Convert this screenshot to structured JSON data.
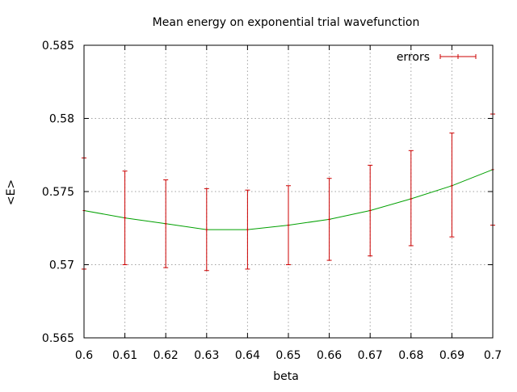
{
  "chart_data": {
    "type": "line",
    "title": "Mean energy on exponential trial wavefunction",
    "xlabel": "beta",
    "ylabel": "<E>",
    "xlim": [
      0.6,
      0.7
    ],
    "ylim": [
      0.565,
      0.585
    ],
    "x_ticks": [
      "0.6",
      "0.61",
      "0.62",
      "0.63",
      "0.64",
      "0.65",
      "0.66",
      "0.67",
      "0.68",
      "0.69",
      "0.7"
    ],
    "y_ticks": [
      "0.565",
      "0.57",
      "0.575",
      "0.58",
      "0.585"
    ],
    "grid": true,
    "legend_position": "top-right",
    "series": [
      {
        "name": "errors",
        "style": "errorbars",
        "color": "#cc0000",
        "points": [
          {
            "x": 0.6,
            "y": 0.5737,
            "low": 0.5697,
            "high": 0.5773
          },
          {
            "x": 0.61,
            "y": 0.5732,
            "low": 0.57,
            "high": 0.5764
          },
          {
            "x": 0.62,
            "y": 0.5728,
            "low": 0.5698,
            "high": 0.5758
          },
          {
            "x": 0.63,
            "y": 0.5724,
            "low": 0.5696,
            "high": 0.5752
          },
          {
            "x": 0.64,
            "y": 0.5724,
            "low": 0.5697,
            "high": 0.5751
          },
          {
            "x": 0.65,
            "y": 0.5727,
            "low": 0.57,
            "high": 0.5754
          },
          {
            "x": 0.66,
            "y": 0.5731,
            "low": 0.5703,
            "high": 0.5759
          },
          {
            "x": 0.67,
            "y": 0.5737,
            "low": 0.5706,
            "high": 0.5768
          },
          {
            "x": 0.68,
            "y": 0.5745,
            "low": 0.5713,
            "high": 0.5778
          },
          {
            "x": 0.69,
            "y": 0.5754,
            "low": 0.5719,
            "high": 0.579
          },
          {
            "x": 0.7,
            "y": 0.5765,
            "low": 0.5727,
            "high": 0.5803
          }
        ]
      },
      {
        "style": "line",
        "color": "#00a000",
        "x": [
          0.6,
          0.61,
          0.62,
          0.63,
          0.64,
          0.65,
          0.66,
          0.67,
          0.68,
          0.69,
          0.7
        ],
        "y": [
          0.5737,
          0.5732,
          0.5728,
          0.5724,
          0.5724,
          0.5727,
          0.5731,
          0.5737,
          0.5745,
          0.5754,
          0.5765
        ]
      }
    ]
  }
}
